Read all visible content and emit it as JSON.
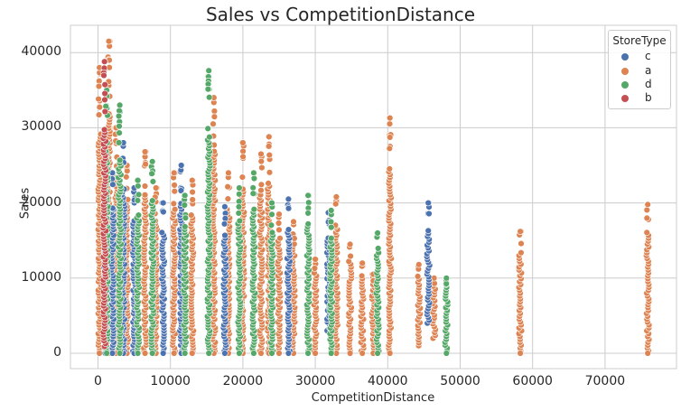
{
  "chart_data": {
    "type": "scatter",
    "title": "Sales vs CompetitionDistance",
    "xlabel": "CompetitionDistance",
    "ylabel": "Sales",
    "xlim": [
      -3500,
      80000
    ],
    "ylim": [
      -2000,
      43500
    ],
    "xticks": [
      0,
      10000,
      20000,
      30000,
      40000,
      50000,
      60000,
      70000
    ],
    "xtick_labels": [
      "0",
      "10000",
      "20000",
      "30000",
      "40000",
      "50000",
      "60000",
      "70000"
    ],
    "yticks": [
      0,
      10000,
      20000,
      30000,
      40000
    ],
    "ytick_labels": [
      "0",
      "10000",
      "20000",
      "30000",
      "40000"
    ],
    "grid": true,
    "legend": {
      "title": "StoreType",
      "position": "upper right",
      "entries": [
        {
          "label": "c",
          "color": "#4c72b0"
        },
        {
          "label": "a",
          "color": "#dd8452"
        },
        {
          "label": "d",
          "color": "#55a868"
        },
        {
          "label": "b",
          "color": "#c44e52"
        }
      ]
    },
    "series": [
      {
        "name": "c",
        "color": "#4c72b0",
        "columns": [
          {
            "x": 1000,
            "ymin": 0,
            "ymax": 26000
          },
          {
            "x": 2000,
            "ymin": 0,
            "ymax": 24000
          },
          {
            "x": 3500,
            "ymin": 0,
            "ymax": 28000
          },
          {
            "x": 5000,
            "ymin": 0,
            "ymax": 22000
          },
          {
            "x": 9000,
            "ymin": 0,
            "ymax": 20000
          },
          {
            "x": 11500,
            "ymin": 0,
            "ymax": 25000
          },
          {
            "x": 17500,
            "ymin": 0,
            "ymax": 19500
          },
          {
            "x": 26300,
            "ymin": 0,
            "ymax": 20500
          },
          {
            "x": 31800,
            "ymin": 3000,
            "ymax": 18700
          },
          {
            "x": 45600,
            "ymin": 4000,
            "ymax": 20000
          }
        ]
      },
      {
        "name": "a",
        "color": "#dd8452",
        "columns": [
          {
            "x": 200,
            "ymin": 0,
            "ymax": 38000
          },
          {
            "x": 1500,
            "ymin": 0,
            "ymax": 41500
          },
          {
            "x": 2500,
            "ymin": 0,
            "ymax": 30000
          },
          {
            "x": 4000,
            "ymin": 0,
            "ymax": 25000
          },
          {
            "x": 6500,
            "ymin": 0,
            "ymax": 26800
          },
          {
            "x": 8000,
            "ymin": 0,
            "ymax": 22000
          },
          {
            "x": 10500,
            "ymin": 0,
            "ymax": 24000
          },
          {
            "x": 13000,
            "ymin": 0,
            "ymax": 23000
          },
          {
            "x": 16000,
            "ymin": 0,
            "ymax": 34000
          },
          {
            "x": 18000,
            "ymin": 0,
            "ymax": 24000
          },
          {
            "x": 20000,
            "ymin": 0,
            "ymax": 28000
          },
          {
            "x": 22500,
            "ymin": 0,
            "ymax": 26500
          },
          {
            "x": 23600,
            "ymin": 0,
            "ymax": 28800
          },
          {
            "x": 25000,
            "ymin": 0,
            "ymax": 18500
          },
          {
            "x": 27000,
            "ymin": 0,
            "ymax": 17500
          },
          {
            "x": 30000,
            "ymin": 0,
            "ymax": 12500
          },
          {
            "x": 32900,
            "ymin": 0,
            "ymax": 20800
          },
          {
            "x": 34800,
            "ymin": 0,
            "ymax": 14500
          },
          {
            "x": 36500,
            "ymin": 0,
            "ymax": 12000
          },
          {
            "x": 38000,
            "ymin": 0,
            "ymax": 10500
          },
          {
            "x": 40300,
            "ymin": 0,
            "ymax": 31300
          },
          {
            "x": 44300,
            "ymin": 1000,
            "ymax": 11800
          },
          {
            "x": 46400,
            "ymin": 2000,
            "ymax": 10000
          },
          {
            "x": 58300,
            "ymin": 0,
            "ymax": 16200
          },
          {
            "x": 75900,
            "ymin": 0,
            "ymax": 19800
          }
        ]
      },
      {
        "name": "d",
        "color": "#55a868",
        "columns": [
          {
            "x": 1200,
            "ymin": 0,
            "ymax": 35000
          },
          {
            "x": 3000,
            "ymin": 0,
            "ymax": 33000
          },
          {
            "x": 5500,
            "ymin": 0,
            "ymax": 23000
          },
          {
            "x": 7500,
            "ymin": 0,
            "ymax": 25500
          },
          {
            "x": 12000,
            "ymin": 0,
            "ymax": 21000
          },
          {
            "x": 15300,
            "ymin": 0,
            "ymax": 37600
          },
          {
            "x": 19500,
            "ymin": 0,
            "ymax": 22000
          },
          {
            "x": 21500,
            "ymin": 0,
            "ymax": 24000
          },
          {
            "x": 24000,
            "ymin": 0,
            "ymax": 20000
          },
          {
            "x": 29000,
            "ymin": 0,
            "ymax": 21000
          },
          {
            "x": 32200,
            "ymin": 0,
            "ymax": 19000
          },
          {
            "x": 38600,
            "ymin": 0,
            "ymax": 16000
          },
          {
            "x": 48100,
            "ymin": 0,
            "ymax": 10000
          }
        ]
      },
      {
        "name": "b",
        "color": "#c44e52",
        "columns": [
          {
            "x": 900,
            "ymin": 900,
            "ymax": 38800
          }
        ]
      }
    ]
  }
}
